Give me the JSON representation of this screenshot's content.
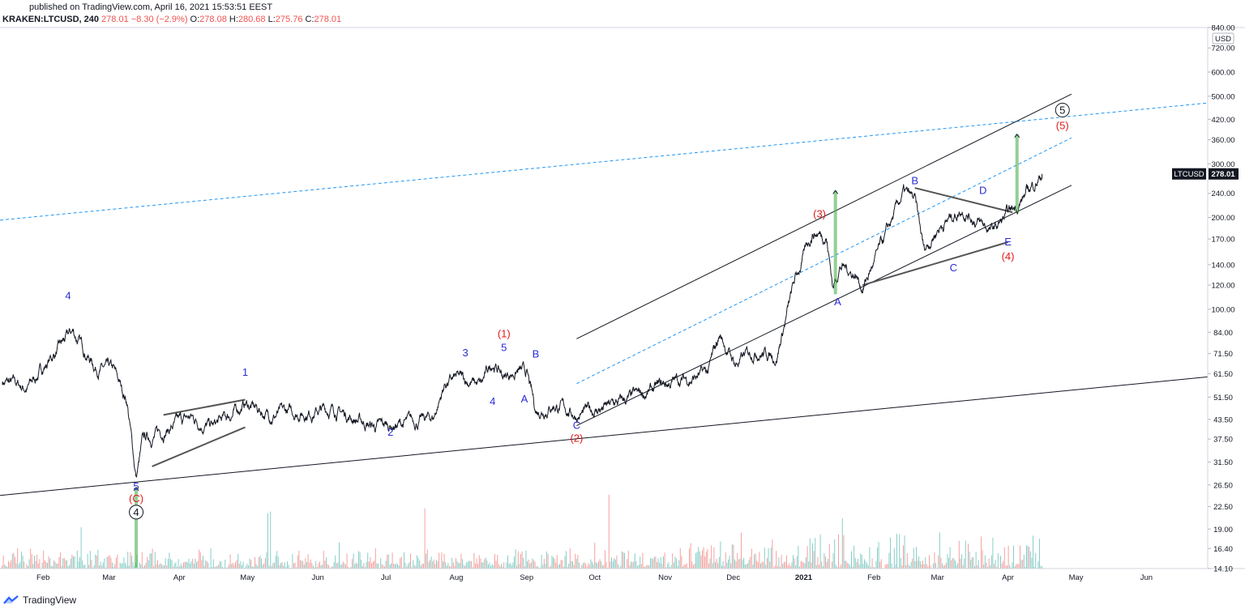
{
  "header": {
    "published": "published on TradingView.com, April 16, 2021 15:53:51 EEST",
    "symbol": "KRAKEN:LTCUSD, 240",
    "last": "278.01",
    "change": "−8.30 (−2.9%)",
    "o_label": "O:",
    "o": "278.08",
    "h_label": "H:",
    "h": "280.68",
    "l_label": "L:",
    "l": "275.76",
    "c_label": "C:",
    "c": "278.01"
  },
  "price_axis": {
    "currency": "USD",
    "last_price_tag": "LTCUSD",
    "last_price": "278.01"
  },
  "footer": {
    "brand": "TradingView"
  },
  "colors": {
    "candle": "#131722",
    "volume_up": "#26a69a",
    "volume_down": "#ef5350",
    "channel_dashed": "#2196f3",
    "wave_blue": "#2b2bd6",
    "wave_red": "#e01b1b",
    "arrow_fill": "#4caf50"
  },
  "chart_data": {
    "type": "line",
    "title": "",
    "scale": "log",
    "ylim": [
      14.1,
      840.0
    ],
    "xlim": [
      "2020-01-13",
      "2021-06-28"
    ],
    "y_ticks": [
      "840.00",
      "720.00",
      "600.00",
      "500.00",
      "420.00",
      "360.00",
      "300.00",
      "240.00",
      "200.00",
      "170.00",
      "140.00",
      "120.00",
      "100.00",
      "84.00",
      "71.50",
      "61.50",
      "51.50",
      "43.50",
      "37.50",
      "31.50",
      "26.50",
      "22.50",
      "19.00",
      "16.40",
      "14.10"
    ],
    "x_ticks": [
      "Feb",
      "Mar",
      "Apr",
      "May",
      "Jun",
      "Jul",
      "Aug",
      "Sep",
      "Oct",
      "Nov",
      "Dec",
      "2021",
      "Feb",
      "Mar",
      "Apr",
      "May",
      "Jun"
    ],
    "series": [
      {
        "x": [
          "2020-01-14",
          "2020-01-25",
          "2020-02-03",
          "2020-02-14",
          "2020-02-24",
          "2020-03-03",
          "2020-03-09",
          "2020-03-12",
          "2020-03-13",
          "2020-03-16",
          "2020-03-25",
          "2020-04-06",
          "2020-04-16",
          "2020-04-27",
          "2020-04-30",
          "2020-05-10",
          "2020-05-25",
          "2020-06-08",
          "2020-06-26",
          "2020-07-08",
          "2020-07-22",
          "2020-07-27",
          "2020-08-01",
          "2020-08-07",
          "2020-08-12",
          "2020-08-17",
          "2020-08-22",
          "2020-08-28",
          "2020-09-01",
          "2020-09-05",
          "2020-09-13",
          "2020-09-18",
          "2020-09-23",
          "2020-10-08",
          "2020-10-21",
          "2020-11-05",
          "2020-11-15",
          "2020-11-20",
          "2020-11-25",
          "2020-12-02",
          "2020-12-11",
          "2020-12-20",
          "2020-12-28",
          "2021-01-05",
          "2021-01-11",
          "2021-01-14",
          "2021-01-17",
          "2021-01-24",
          "2021-01-27",
          "2021-02-05",
          "2021-02-14",
          "2021-02-19",
          "2021-02-23",
          "2021-03-01",
          "2021-03-12",
          "2021-03-20",
          "2021-03-25",
          "2021-04-03",
          "2021-04-16"
        ],
        "values": [
          58,
          55,
          67,
          84,
          65,
          62,
          50,
          32,
          28,
          37,
          40,
          44,
          41,
          47,
          49,
          45,
          46,
          47,
          41,
          42,
          44,
          57,
          59,
          58,
          56,
          67,
          60,
          63,
          61,
          46,
          49,
          47,
          45,
          48,
          52,
          58,
          60,
          62,
          82,
          66,
          74,
          70,
          122,
          180,
          175,
          118,
          140,
          130,
          118,
          165,
          240,
          225,
          155,
          185,
          215,
          190,
          180,
          210,
          278
        ]
      }
    ],
    "annotations": [
      {
        "text": "4",
        "style": "blue",
        "x": "2020-02-12",
        "y": 108
      },
      {
        "text": "5",
        "style": "blue",
        "x": "2020-03-13",
        "y": 25.5
      },
      {
        "text": "(C)",
        "style": "red",
        "x": "2020-03-13",
        "y": 23.3
      },
      {
        "text": "4",
        "style": "circled",
        "x": "2020-03-13",
        "y": 21.0
      },
      {
        "text": "1",
        "style": "blue",
        "x": "2020-04-30",
        "y": 60.5
      },
      {
        "text": "2",
        "style": "blue",
        "x": "2020-07-03",
        "y": 38.5
      },
      {
        "text": "3",
        "style": "blue",
        "x": "2020-08-05",
        "y": 70
      },
      {
        "text": "4",
        "style": "blue",
        "x": "2020-08-17",
        "y": 48.5
      },
      {
        "text": "5",
        "style": "blue",
        "x": "2020-08-22",
        "y": 73
      },
      {
        "text": "(1)",
        "style": "red",
        "x": "2020-08-22",
        "y": 81
      },
      {
        "text": "A",
        "style": "blue",
        "x": "2020-08-31",
        "y": 49.5
      },
      {
        "text": "B",
        "style": "blue",
        "x": "2020-09-05",
        "y": 69.5
      },
      {
        "text": "C",
        "style": "blue",
        "x": "2020-09-23",
        "y": 40.5
      },
      {
        "text": "(2)",
        "style": "red",
        "x": "2020-09-23",
        "y": 36.7
      },
      {
        "text": "(3)",
        "style": "red",
        "x": "2021-01-08",
        "y": 200
      },
      {
        "text": "A",
        "style": "blue",
        "x": "2021-01-16",
        "y": 103
      },
      {
        "text": "B",
        "style": "blue",
        "x": "2021-02-19",
        "y": 257
      },
      {
        "text": "C",
        "style": "blue",
        "x": "2021-03-08",
        "y": 133
      },
      {
        "text": "D",
        "style": "blue",
        "x": "2021-03-21",
        "y": 239
      },
      {
        "text": "E",
        "style": "blue",
        "x": "2021-04-01",
        "y": 162
      },
      {
        "text": "(4)",
        "style": "red",
        "x": "2021-04-01",
        "y": 145
      },
      {
        "text": "5",
        "style": "circled",
        "x": "2021-04-25",
        "y": 438
      },
      {
        "text": "(5)",
        "style": "red",
        "x": "2021-04-25",
        "y": 390
      }
    ]
  }
}
